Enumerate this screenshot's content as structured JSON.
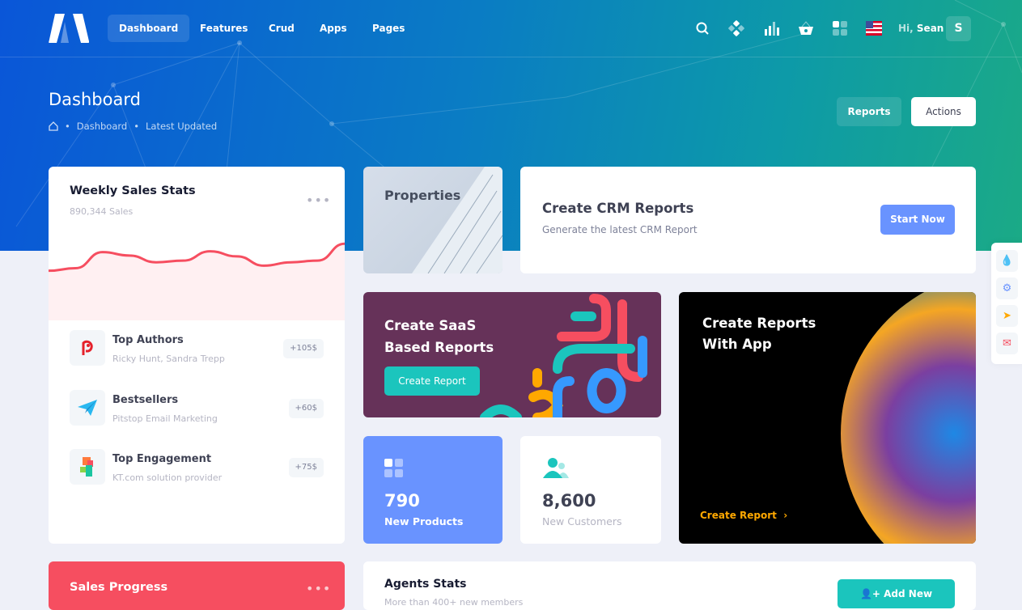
{
  "header": {
    "nav": [
      "Dashboard",
      "Features",
      "Crud",
      "Apps",
      "Pages"
    ],
    "greeting": "Hi,",
    "user": "Sean",
    "avatar": "S",
    "icons": [
      "search-icon",
      "layers-icon",
      "chart-icon",
      "basket-icon",
      "apps-icon",
      "us-flag-icon"
    ]
  },
  "subheader": {
    "title": "Dashboard",
    "breadcrumb": [
      "Dashboard",
      "Latest Updated"
    ],
    "reports": "Reports",
    "actions": "Actions"
  },
  "weekly": {
    "title": "Weekly Sales Stats",
    "subtitle": "890,344 Sales",
    "sparkline": [
      30,
      33,
      52,
      48,
      40,
      42,
      53,
      47,
      36,
      40,
      42,
      62
    ],
    "line_color": "#F64E60",
    "items": [
      {
        "title": "Top Authors",
        "sub": "Ricky Hunt, Sandra Trepp",
        "badge": "+105$"
      },
      {
        "title": "Bestsellers",
        "sub": "Pitstop Email Marketing",
        "badge": "+60$"
      },
      {
        "title": "Top Engagement",
        "sub": "KT.com solution provider",
        "badge": "+75$"
      }
    ]
  },
  "properties": {
    "title": "Properties"
  },
  "crm": {
    "title": "Create CRM Reports",
    "sub": "Generate the latest CRM Report",
    "button": "Start Now"
  },
  "saas": {
    "line1": "Create SaaS",
    "line2": "Based Reports",
    "button": "Create Report"
  },
  "app": {
    "line1": "Create Reports",
    "line2": "With App",
    "link": "Create Report"
  },
  "products": {
    "value": "790",
    "label": "New Products"
  },
  "customers": {
    "value": "8,600",
    "label": "New Customers"
  },
  "sales_progress": {
    "title": "Sales Progress"
  },
  "agents": {
    "title": "Agents Stats",
    "sub": "More than 400+ new members",
    "button": "Add New Member"
  },
  "colors": {
    "primary": "#6993FF",
    "teal": "#1BC5BD",
    "danger": "#F64E60",
    "saas_bg": "#663259",
    "warning": "#FFA800"
  }
}
